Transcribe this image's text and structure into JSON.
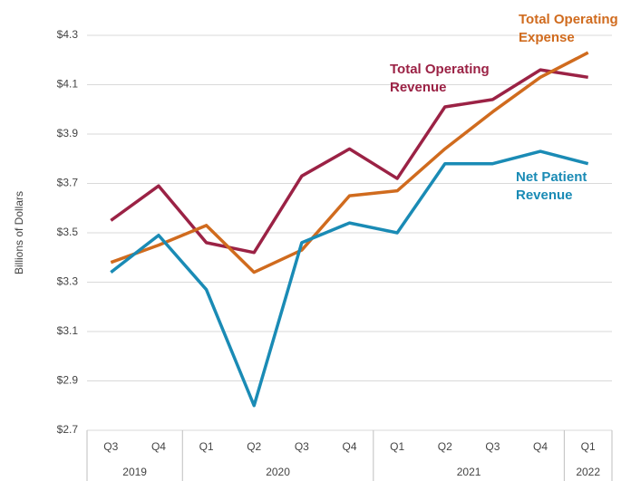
{
  "chart_data": {
    "type": "line",
    "y_label": "Billions of Dollars",
    "categories": [
      "Q3",
      "Q4",
      "Q1",
      "Q2",
      "Q3",
      "Q4",
      "Q1",
      "Q2",
      "Q3",
      "Q4",
      "Q1"
    ],
    "x_groups": [
      {
        "label": "2019",
        "count": 2
      },
      {
        "label": "2020",
        "count": 4
      },
      {
        "label": "2021",
        "count": 4
      },
      {
        "label": "2022",
        "count": 1
      }
    ],
    "series": [
      {
        "name": "Total Operating Revenue",
        "color": "#9b2245",
        "values": [
          3.55,
          3.69,
          3.46,
          3.42,
          3.73,
          3.84,
          3.72,
          4.01,
          4.04,
          4.16,
          4.13
        ]
      },
      {
        "name": "Total Operating Expense",
        "color": "#d06b1e",
        "values": [
          3.38,
          3.45,
          3.53,
          3.34,
          3.43,
          3.65,
          3.67,
          3.84,
          3.99,
          4.13,
          4.23
        ]
      },
      {
        "name": "Net Patient Revenue",
        "color": "#1a8bb5",
        "values": [
          3.34,
          3.49,
          3.27,
          2.8,
          3.46,
          3.54,
          3.5,
          3.78,
          3.78,
          3.83,
          3.78
        ]
      }
    ],
    "ylim": [
      2.7,
      4.3
    ],
    "yticks": [
      {
        "value": 2.7,
        "label": "$2.7"
      },
      {
        "value": 2.9,
        "label": "$2.9"
      },
      {
        "value": 3.1,
        "label": "$3.1"
      },
      {
        "value": 3.3,
        "label": "$3.3"
      },
      {
        "value": 3.5,
        "label": "$3.5"
      },
      {
        "value": 3.7,
        "label": "$3.7"
      },
      {
        "value": 3.9,
        "label": "$3.9"
      },
      {
        "value": 4.1,
        "label": "$4.1"
      },
      {
        "value": 4.3,
        "label": "$4.3"
      }
    ],
    "grid": true
  }
}
